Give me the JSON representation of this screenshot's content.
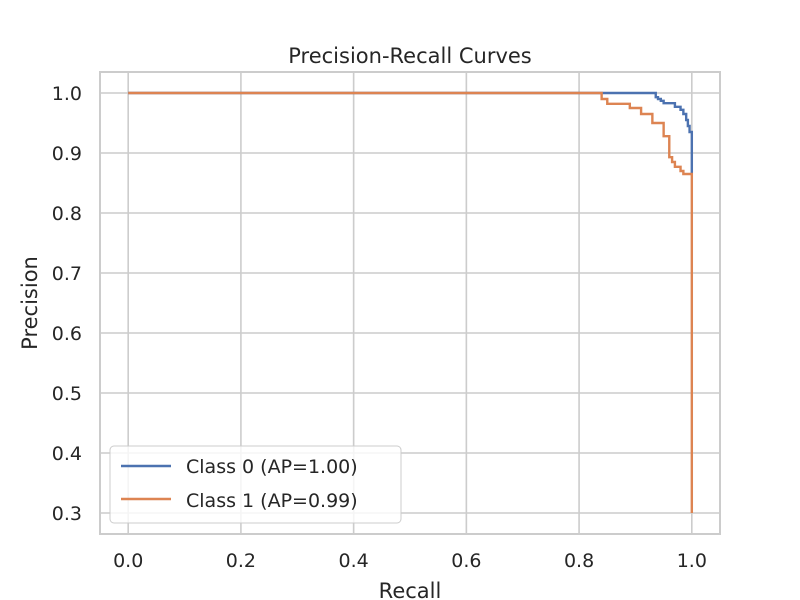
{
  "chart_data": {
    "type": "line",
    "title": "Precision-Recall Curves",
    "xlabel": "Recall",
    "ylabel": "Precision",
    "xlim": [
      -0.05,
      1.05
    ],
    "ylim": [
      0.265,
      1.035
    ],
    "grid": true,
    "legend_position": "lower-left",
    "x_ticks": [
      0.0,
      0.2,
      0.4,
      0.6,
      0.8,
      1.0
    ],
    "x_tick_labels": [
      "0.0",
      "0.2",
      "0.4",
      "0.6",
      "0.8",
      "1.0"
    ],
    "y_ticks": [
      0.3,
      0.4,
      0.5,
      0.6,
      0.7,
      0.8,
      0.9,
      1.0
    ],
    "y_tick_labels": [
      "0.3",
      "0.4",
      "0.5",
      "0.6",
      "0.7",
      "0.8",
      "0.9",
      "1.0"
    ],
    "series": [
      {
        "name": "Class 0 (AP=1.00)",
        "color": "#4c72b0",
        "recall": [
          0.0,
          0.933,
          0.936,
          0.94,
          0.945,
          0.95,
          0.96,
          0.97,
          0.98,
          0.985,
          0.99,
          0.993,
          0.996,
          1.0,
          1.0
        ],
        "precision": [
          1.0,
          1.0,
          0.993,
          0.99,
          0.987,
          0.983,
          0.983,
          0.977,
          0.972,
          0.965,
          0.955,
          0.945,
          0.935,
          0.925,
          0.865
        ]
      },
      {
        "name": "Class 1 (AP=0.99)",
        "color": "#dd8452",
        "recall": [
          0.0,
          0.82,
          0.84,
          0.85,
          0.87,
          0.89,
          0.9,
          0.91,
          0.93,
          0.94,
          0.95,
          0.96,
          0.965,
          0.97,
          0.98,
          0.985,
          0.99,
          1.0,
          1.0
        ],
        "precision": [
          1.0,
          1.0,
          0.99,
          0.982,
          0.982,
          0.975,
          0.975,
          0.965,
          0.95,
          0.95,
          0.928,
          0.893,
          0.885,
          0.877,
          0.87,
          0.865,
          0.865,
          0.865,
          0.3
        ]
      }
    ]
  }
}
